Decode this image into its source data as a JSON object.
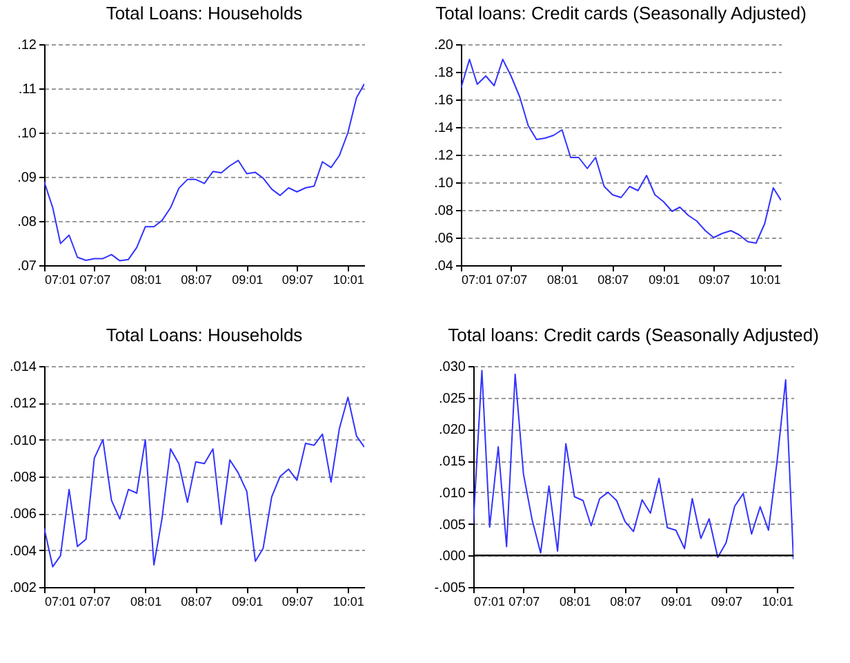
{
  "chart_data": [
    {
      "type": "line",
      "title": "Total Loans: Households",
      "x": [
        "2007-01",
        "2007-02",
        "2007-03",
        "2007-04",
        "2007-05",
        "2007-06",
        "2007-07",
        "2007-08",
        "2007-09",
        "2007-10",
        "2007-11",
        "2007-12",
        "2008-01",
        "2008-02",
        "2008-03",
        "2008-04",
        "2008-05",
        "2008-06",
        "2008-07",
        "2008-08",
        "2008-09",
        "2008-10",
        "2008-11",
        "2008-12",
        "2009-01",
        "2009-02",
        "2009-03",
        "2009-04",
        "2009-05",
        "2009-06",
        "2009-07",
        "2009-08",
        "2009-09",
        "2009-10",
        "2009-11",
        "2009-12",
        "2010-01",
        "2010-02",
        "2010-03"
      ],
      "series": [
        {
          "color": "#3333ff",
          "values": [
            0.0889,
            0.083,
            0.0749,
            0.0768,
            0.0718,
            0.0711,
            0.0715,
            0.0715,
            0.0724,
            0.071,
            0.0713,
            0.074,
            0.0787,
            0.0787,
            0.0801,
            0.083,
            0.0874,
            0.0894,
            0.0894,
            0.0885,
            0.0912,
            0.0909,
            0.0925,
            0.0937,
            0.0907,
            0.091,
            0.0897,
            0.0872,
            0.0858,
            0.0875,
            0.0866,
            0.0875,
            0.0879,
            0.0934,
            0.0921,
            0.0948,
            0.1,
            0.1079,
            0.111
          ]
        }
      ],
      "xlim": [
        "2007-01",
        "2010-03"
      ],
      "xticks": [
        {
          "value": "2007-01",
          "label": "07:01"
        },
        {
          "value": "2007-07",
          "label": "07:07"
        },
        {
          "value": "2008-01",
          "label": "08:01"
        },
        {
          "value": "2008-07",
          "label": "08:07"
        },
        {
          "value": "2009-01",
          "label": "09:01"
        },
        {
          "value": "2009-07",
          "label": "09:07"
        },
        {
          "value": "2010-01",
          "label": "10:01"
        }
      ],
      "ylim": [
        0.07,
        0.12
      ],
      "yticks": [
        {
          "value": 0.07,
          "label": ".07"
        },
        {
          "value": 0.08,
          "label": ".08"
        },
        {
          "value": 0.09,
          "label": ".09"
        },
        {
          "value": 0.1,
          "label": ".10"
        },
        {
          "value": 0.11,
          "label": ".11"
        },
        {
          "value": 0.12,
          "label": ".12"
        }
      ],
      "grid": "y",
      "line_style": "solid"
    },
    {
      "type": "line",
      "title": "Total loans: Credit cards (Seasonally Adjusted)",
      "x": [
        "2007-01",
        "2007-02",
        "2007-03",
        "2007-04",
        "2007-05",
        "2007-06",
        "2007-07",
        "2007-08",
        "2007-09",
        "2007-10",
        "2007-11",
        "2007-12",
        "2008-01",
        "2008-02",
        "2008-03",
        "2008-04",
        "2008-05",
        "2008-06",
        "2008-07",
        "2008-08",
        "2008-09",
        "2008-10",
        "2008-11",
        "2008-12",
        "2009-01",
        "2009-02",
        "2009-03",
        "2009-04",
        "2009-05",
        "2009-06",
        "2009-07",
        "2009-08",
        "2009-09",
        "2009-10",
        "2009-11",
        "2009-12",
        "2010-01",
        "2010-02",
        "2010-03"
      ],
      "series": [
        {
          "color": "#3333ff",
          "values": [
            0.168,
            0.189,
            0.171,
            0.177,
            0.17,
            0.189,
            0.177,
            0.162,
            0.141,
            0.131,
            0.132,
            0.134,
            0.138,
            0.118,
            0.118,
            0.11,
            0.118,
            0.097,
            0.091,
            0.089,
            0.097,
            0.094,
            0.105,
            0.091,
            0.086,
            0.079,
            0.082,
            0.076,
            0.072,
            0.065,
            0.06,
            0.063,
            0.065,
            0.062,
            0.057,
            0.056,
            0.07,
            0.096,
            0.087
          ]
        }
      ],
      "xlim": [
        "2007-01",
        "2010-03"
      ],
      "xticks": [
        {
          "value": "2007-01",
          "label": "07:01"
        },
        {
          "value": "2007-07",
          "label": "07:07"
        },
        {
          "value": "2008-01",
          "label": "08:01"
        },
        {
          "value": "2008-07",
          "label": "08:07"
        },
        {
          "value": "2009-01",
          "label": "09:01"
        },
        {
          "value": "2009-07",
          "label": "09:07"
        },
        {
          "value": "2010-01",
          "label": "10:01"
        }
      ],
      "ylim": [
        0.04,
        0.2
      ],
      "yticks": [
        {
          "value": 0.04,
          "label": ".04"
        },
        {
          "value": 0.06,
          "label": ".06"
        },
        {
          "value": 0.08,
          "label": ".08"
        },
        {
          "value": 0.1,
          "label": ".10"
        },
        {
          "value": 0.12,
          "label": ".12"
        },
        {
          "value": 0.14,
          "label": ".14"
        },
        {
          "value": 0.16,
          "label": ".16"
        },
        {
          "value": 0.18,
          "label": ".18"
        },
        {
          "value": 0.2,
          "label": ".20"
        }
      ],
      "grid": "y",
      "line_style": "solid"
    },
    {
      "type": "line",
      "title": "Total Loans: Households",
      "x": [
        "2007-01",
        "2007-02",
        "2007-03",
        "2007-04",
        "2007-05",
        "2007-06",
        "2007-07",
        "2007-08",
        "2007-09",
        "2007-10",
        "2007-11",
        "2007-12",
        "2008-01",
        "2008-02",
        "2008-03",
        "2008-04",
        "2008-05",
        "2008-06",
        "2008-07",
        "2008-08",
        "2008-09",
        "2008-10",
        "2008-11",
        "2008-12",
        "2009-01",
        "2009-02",
        "2009-03",
        "2009-04",
        "2009-05",
        "2009-06",
        "2009-07",
        "2009-08",
        "2009-09",
        "2009-10",
        "2009-11",
        "2009-12",
        "2010-01",
        "2010-02",
        "2010-03"
      ],
      "series": [
        {
          "color": "#3333ff",
          "values": [
            0.0052,
            0.0031,
            0.0037,
            0.0073,
            0.0042,
            0.0046,
            0.009,
            0.01,
            0.0067,
            0.0057,
            0.0073,
            0.0071,
            0.01,
            0.0032,
            0.0057,
            0.0095,
            0.0087,
            0.0066,
            0.0088,
            0.0087,
            0.0095,
            0.0054,
            0.0089,
            0.0082,
            0.0072,
            0.0034,
            0.0041,
            0.0069,
            0.008,
            0.0084,
            0.0078,
            0.0098,
            0.0097,
            0.0103,
            0.0077,
            0.0106,
            0.0123,
            0.0102,
            0.0096
          ]
        }
      ],
      "xlim": [
        "2007-01",
        "2010-03"
      ],
      "xticks": [
        {
          "value": "2007-01",
          "label": "07:01"
        },
        {
          "value": "2007-07",
          "label": "07:07"
        },
        {
          "value": "2008-01",
          "label": "08:01"
        },
        {
          "value": "2008-07",
          "label": "08:07"
        },
        {
          "value": "2009-01",
          "label": "09:01"
        },
        {
          "value": "2009-07",
          "label": "09:07"
        },
        {
          "value": "2010-01",
          "label": "10:01"
        }
      ],
      "ylim": [
        0.002,
        0.014
      ],
      "yticks": [
        {
          "value": 0.002,
          "label": ".002"
        },
        {
          "value": 0.004,
          "label": ".004"
        },
        {
          "value": 0.006,
          "label": ".006"
        },
        {
          "value": 0.008,
          "label": ".008"
        },
        {
          "value": 0.01,
          "label": ".010"
        },
        {
          "value": 0.012,
          "label": ".012"
        },
        {
          "value": 0.014,
          "label": ".014"
        }
      ],
      "grid": "y",
      "line_style": "solid"
    },
    {
      "type": "line",
      "title": "Total loans: Credit cards (Seasonally Adjusted)",
      "x": [
        "2007-01",
        "2007-02",
        "2007-03",
        "2007-04",
        "2007-05",
        "2007-06",
        "2007-07",
        "2007-08",
        "2007-09",
        "2007-10",
        "2007-11",
        "2007-12",
        "2008-01",
        "2008-02",
        "2008-03",
        "2008-04",
        "2008-05",
        "2008-06",
        "2008-07",
        "2008-08",
        "2008-09",
        "2008-10",
        "2008-11",
        "2008-12",
        "2009-01",
        "2009-02",
        "2009-03",
        "2009-04",
        "2009-05",
        "2009-06",
        "2009-07",
        "2009-08",
        "2009-09",
        "2009-10",
        "2009-11",
        "2009-12",
        "2010-01",
        "2010-02",
        "2010-03"
      ],
      "series": [
        {
          "color": "#3333ff",
          "values": [
            0.005,
            0.0293,
            0.0045,
            0.0172,
            0.0014,
            0.0287,
            0.0129,
            0.0057,
            0.0004,
            0.011,
            0.0007,
            0.0177,
            0.0093,
            0.0087,
            0.0047,
            0.009,
            0.01,
            0.0087,
            0.0054,
            0.0038,
            0.0088,
            0.0067,
            0.0122,
            0.0044,
            0.004,
            0.0011,
            0.009,
            0.0027,
            0.0058,
            -0.0003,
            0.002,
            0.0078,
            0.0098,
            0.0034,
            0.0077,
            0.004,
            0.0149,
            0.0278,
            -0.0006
          ]
        }
      ],
      "xlim": [
        "2007-01",
        "2010-03"
      ],
      "xticks": [
        {
          "value": "2007-01",
          "label": "07:01"
        },
        {
          "value": "2007-07",
          "label": "07:07"
        },
        {
          "value": "2008-01",
          "label": "08:01"
        },
        {
          "value": "2008-07",
          "label": "08:07"
        },
        {
          "value": "2009-01",
          "label": "09:01"
        },
        {
          "value": "2009-07",
          "label": "09:07"
        },
        {
          "value": "2010-01",
          "label": "10:01"
        }
      ],
      "ylim": [
        -0.005,
        0.03
      ],
      "yticks": [
        {
          "value": -0.005,
          "label": "-.005"
        },
        {
          "value": 0,
          "label": ".000"
        },
        {
          "value": 0.005,
          "label": ".005"
        },
        {
          "value": 0.01,
          "label": ".010"
        },
        {
          "value": 0.015,
          "label": ".015"
        },
        {
          "value": 0.02,
          "label": ".020"
        },
        {
          "value": 0.025,
          "label": ".025"
        },
        {
          "value": 0.03,
          "label": ".030"
        }
      ],
      "ref_lines": [
        {
          "axis": "y",
          "value": 0,
          "color": "#000000",
          "line_style": "solid"
        }
      ],
      "grid": "y",
      "line_style": "solid"
    }
  ]
}
